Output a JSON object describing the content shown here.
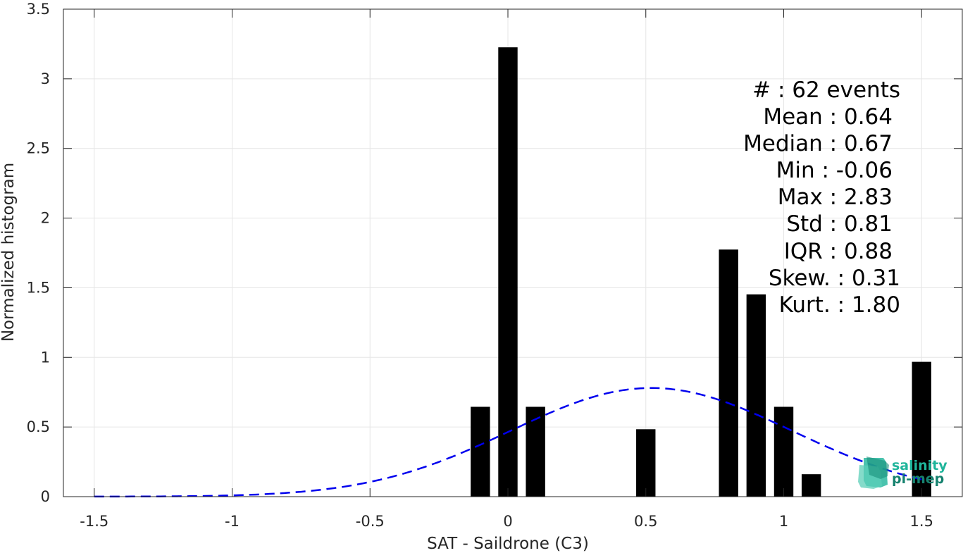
{
  "chart_data": {
    "type": "bar",
    "xlabel": "SAT - Saildrone (C3)",
    "ylabel": "Normalized histogram",
    "xlim": [
      -1.6,
      1.6
    ],
    "ylim": [
      0,
      3.5
    ],
    "xticks": [
      -1.5,
      -1,
      -0.5,
      0,
      0.5,
      1,
      1.5
    ],
    "xtick_labels": [
      "-1.5",
      "-1",
      "-0.5",
      "0",
      "0.5",
      "1",
      "1.5"
    ],
    "yticks": [
      0,
      0.5,
      1,
      1.5,
      2,
      2.5,
      3,
      3.5
    ],
    "ytick_labels": [
      "0",
      "0.5",
      "1",
      "1.5",
      "2",
      "2.5",
      "3",
      "3.5"
    ],
    "grid": true,
    "bar_width": 0.07,
    "bars": [
      {
        "x": -0.1,
        "value": 0.645
      },
      {
        "x": 0.0,
        "value": 3.226
      },
      {
        "x": 0.1,
        "value": 0.645
      },
      {
        "x": 0.5,
        "value": 0.484
      },
      {
        "x": 0.8,
        "value": 1.774
      },
      {
        "x": 0.9,
        "value": 1.452
      },
      {
        "x": 1.0,
        "value": 0.645
      },
      {
        "x": 1.1,
        "value": 0.161
      },
      {
        "x": 1.5,
        "value": 0.968
      }
    ],
    "fit_curve": {
      "type": "normal",
      "mean": 0.52,
      "std": 0.51,
      "peak": 0.78,
      "x_range": [
        -1.5,
        1.5
      ],
      "style": "dashed",
      "color": "#0000ee"
    },
    "bar_color": "#000000"
  },
  "stats": [
    {
      "label": "#  : 62 events"
    },
    {
      "label": "Mean : 0.64"
    },
    {
      "label": "Median : 0.67"
    },
    {
      "label": "Min : -0.06"
    },
    {
      "label": "Max : 2.83"
    },
    {
      "label": "Std : 0.81"
    },
    {
      "label": "IQR : 0.88"
    },
    {
      "label": "Skew. : 0.31"
    },
    {
      "label": "Kurt. : 1.80"
    }
  ],
  "logo": {
    "line1": "salinity",
    "line2": "pi-mep",
    "color_top": "#1fb59b",
    "color_bottom": "#16826f"
  }
}
